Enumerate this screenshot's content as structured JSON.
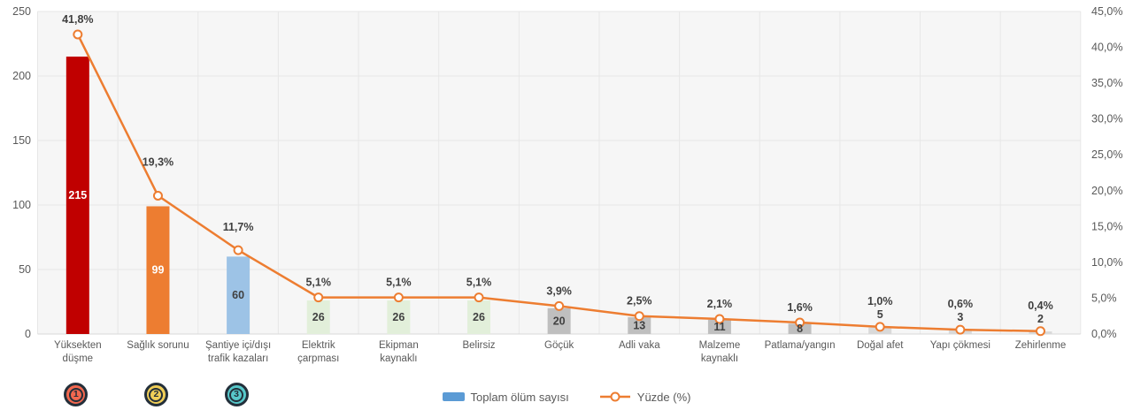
{
  "colors": {
    "plot_bg": "#F6F6F6",
    "gridline": "#E7E7E7",
    "axis_line": "#D9D9D9",
    "axis_text": "#595959",
    "label_text": "#3F3F3F",
    "line": "#ED7D31",
    "marker_fill": "#FFFFFF",
    "legend_bar": "#5B9BD5",
    "badge_border": "#232F3A"
  },
  "chart_data": {
    "type": "bar",
    "subtype": "pareto-combo-bar-line",
    "title": "",
    "categories": [
      "Yüksekten düşme",
      "Sağlık sorunu",
      "Şantiye içi/dışı trafik kazaları",
      "Elektrik çarpması",
      "Ekipman kaynaklı",
      "Belirsiz",
      "Göçük",
      "Adli vaka",
      "Malzeme kaynaklı",
      "Patlama/yangın",
      "Doğal afet",
      "Yapı çökmesi",
      "Zehirlenme"
    ],
    "category_lines": [
      [
        "Yüksekten",
        "düşme"
      ],
      [
        "Sağlık sorunu"
      ],
      [
        "Şantiye içi/dışı",
        "trafik kazaları"
      ],
      [
        "Elektrik",
        "çarpması"
      ],
      [
        "Ekipman",
        "kaynaklı"
      ],
      [
        "Belirsiz"
      ],
      [
        "Göçük"
      ],
      [
        "Adli vaka"
      ],
      [
        "Malzeme",
        "kaynaklı"
      ],
      [
        "Patlama/yangın"
      ],
      [
        "Doğal afet"
      ],
      [
        "Yapı çökmesi"
      ],
      [
        "Zehirlenme"
      ]
    ],
    "series": [
      {
        "name": "Toplam ölüm sayısı",
        "type": "bar",
        "axis": "left",
        "values": [
          215,
          99,
          60,
          26,
          26,
          26,
          20,
          13,
          11,
          8,
          5,
          3,
          2
        ],
        "bar_colors": [
          "#C00000",
          "#ED7D31",
          "#9DC3E6",
          "#E2EFDA",
          "#E2EFDA",
          "#E2EFDA",
          "#BFBFBF",
          "#BFBFBF",
          "#BFBFBF",
          "#BFBFBF",
          "#D9D9D9",
          "#D9D9D9",
          "#D9D9D9"
        ],
        "value_label_colors": [
          "#FFFFFF",
          "#FFFFFF",
          "#404040",
          "#404040",
          "#404040",
          "#404040",
          "#404040",
          "#404040",
          "#404040",
          "#404040",
          "#404040",
          "#404040",
          "#404040"
        ]
      },
      {
        "name": "Yüzde (%)",
        "type": "line",
        "axis": "right",
        "values": [
          41.8,
          19.3,
          11.7,
          5.1,
          5.1,
          5.1,
          3.9,
          2.5,
          2.1,
          1.6,
          1.0,
          0.6,
          0.4
        ],
        "labels": [
          "41,8%",
          "19,3%",
          "11,7%",
          "5,1%",
          "5,1%",
          "5,1%",
          "3,9%",
          "2,5%",
          "2,1%",
          "1,6%",
          "1,0%",
          "0,6%",
          "0,4%"
        ],
        "color": "#ED7D31"
      }
    ],
    "left_axis": {
      "min": 0,
      "max": 250,
      "step": 50,
      "tick_labels": [
        "0",
        "50",
        "100",
        "150",
        "200",
        "250"
      ]
    },
    "right_axis": {
      "min": 0,
      "max": 45,
      "step": 5,
      "tick_labels": [
        "0,0%",
        "5,0%",
        "10,0%",
        "15,0%",
        "20,0%",
        "25,0%",
        "30,0%",
        "35,0%",
        "40,0%",
        "45,0%"
      ]
    },
    "grid": "on",
    "legend_position": "bottom"
  },
  "legend": {
    "bar_label": "Toplam ölüm sayısı",
    "line_label": "Yüzde (%)"
  },
  "badges": [
    {
      "label": "1",
      "color": "#F2684F"
    },
    {
      "label": "2",
      "color": "#F0CE58"
    },
    {
      "label": "3",
      "color": "#57C8CA"
    }
  ]
}
